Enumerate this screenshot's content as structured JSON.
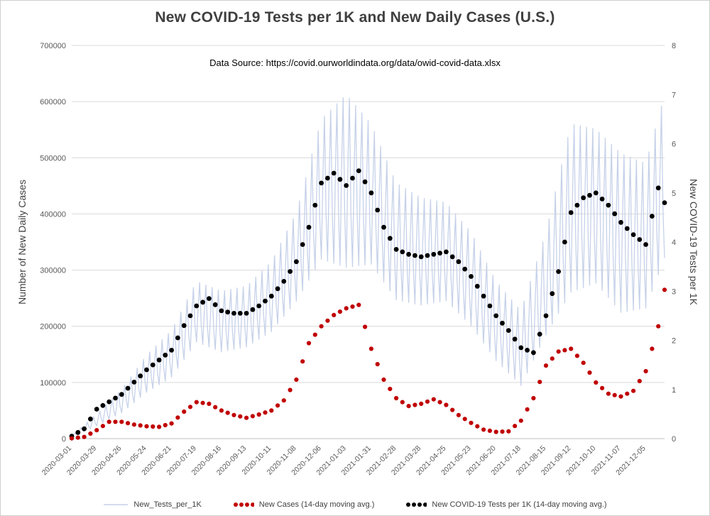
{
  "chart_data": {
    "type": "line",
    "title": "New COVID-19 Tests per 1K and New Daily Cases (U.S.)",
    "subtitle": "Data Source: https://covid.ourworldindata.org/data/owid-covid-data.xlsx",
    "left_axis": {
      "label": "Number of New Daily Cases",
      "min": 0,
      "max": 700000,
      "step": 100000
    },
    "right_axis": {
      "label": "New COVID-19 Tests per 1K",
      "min": 0,
      "max": 8,
      "step": 1
    },
    "x_axis": {
      "tick_interval_days": 28,
      "total_days": 665,
      "tick_labels": [
        "2020-03-01",
        "2020-03-29",
        "2020-04-26",
        "2020-05-24",
        "2020-06-21",
        "2020-07-19",
        "2020-08-16",
        "2020-09-13",
        "2020-10-11",
        "2020-11-08",
        "2020-12-06",
        "2021-01-03",
        "2021-01-31",
        "2021-02-28",
        "2021-03-28",
        "2021-04-25",
        "2021-05-23",
        "2021-06-20",
        "2021-07-18",
        "2021-08-15",
        "2021-09-12",
        "2021-10-10",
        "2021-11-07",
        "2021-12-05"
      ]
    },
    "grid": "horizontal",
    "legend_position": "bottom",
    "colors": {
      "grid": "#d9d9d9",
      "axis_line": "#bfbfbf",
      "tick_text": "#595959"
    },
    "series": [
      {
        "name": "New_Tests_per_1K",
        "axis": "right",
        "style": "jagged-daily-line",
        "color": "#c6d1e9",
        "weekly_period_days": 7,
        "envelope_days": [
          0,
          28,
          56,
          84,
          112,
          140,
          168,
          196,
          224,
          252,
          280,
          308,
          336,
          364,
          392,
          420,
          448,
          476,
          504,
          532,
          560,
          588,
          616,
          644,
          665
        ],
        "envelope_low": [
          0.02,
          0.25,
          0.5,
          0.9,
          1.2,
          1.9,
          1.7,
          1.8,
          2.1,
          2.7,
          3.5,
          3.3,
          3.4,
          2.7,
          2.6,
          2.7,
          2.2,
          1.5,
          1.0,
          2.0,
          2.8,
          3.0,
          2.4,
          2.5,
          3.5
        ],
        "envelope_high": [
          0.06,
          0.5,
          1.0,
          1.7,
          2.2,
          3.2,
          3.0,
          3.1,
          3.6,
          4.6,
          6.5,
          7.0,
          6.4,
          5.2,
          4.9,
          4.8,
          4.2,
          3.2,
          2.6,
          4.2,
          6.4,
          6.3,
          5.8,
          5.6,
          7.0
        ]
      },
      {
        "name": "New Cases (14-day moving avg.)",
        "axis": "left",
        "style": "dots",
        "color": "#c00000",
        "days": [
          0,
          14,
          28,
          42,
          56,
          70,
          84,
          98,
          112,
          126,
          140,
          154,
          168,
          182,
          196,
          210,
          224,
          238,
          252,
          266,
          280,
          294,
          308,
          322,
          336,
          350,
          364,
          378,
          392,
          406,
          420,
          434,
          448,
          462,
          476,
          490,
          504,
          518,
          532,
          546,
          560,
          574,
          588,
          602,
          616,
          630,
          644,
          658,
          664
        ],
        "values": [
          500,
          3000,
          15000,
          30000,
          30000,
          25000,
          22000,
          21000,
          27000,
          48000,
          65000,
          62000,
          50000,
          42000,
          37000,
          43000,
          50000,
          68000,
          105000,
          170000,
          200000,
          220000,
          232000,
          238000,
          160000,
          105000,
          72000,
          58000,
          62000,
          70000,
          60000,
          42000,
          28000,
          16000,
          12000,
          13000,
          32000,
          72000,
          130000,
          155000,
          160000,
          135000,
          100000,
          80000,
          75000,
          85000,
          120000,
          200000,
          265000
        ]
      },
      {
        "name": "New COVID-19 Tests per 1K (14-day moving avg.)",
        "axis": "right",
        "style": "dots",
        "color": "#000000",
        "days": [
          0,
          14,
          28,
          42,
          56,
          70,
          84,
          98,
          112,
          126,
          140,
          154,
          168,
          182,
          196,
          210,
          224,
          238,
          252,
          266,
          280,
          294,
          308,
          322,
          336,
          350,
          364,
          378,
          392,
          406,
          420,
          434,
          448,
          462,
          476,
          490,
          504,
          518,
          532,
          546,
          560,
          574,
          588,
          602,
          616,
          630,
          644,
          658,
          664
        ],
        "values": [
          0.05,
          0.2,
          0.6,
          0.75,
          0.9,
          1.15,
          1.4,
          1.6,
          1.8,
          2.3,
          2.7,
          2.85,
          2.6,
          2.55,
          2.55,
          2.7,
          2.9,
          3.2,
          3.6,
          4.3,
          5.2,
          5.4,
          5.15,
          5.45,
          5.0,
          4.3,
          3.85,
          3.75,
          3.7,
          3.75,
          3.8,
          3.6,
          3.3,
          2.9,
          2.5,
          2.2,
          1.85,
          1.75,
          2.5,
          3.4,
          4.6,
          4.9,
          5.0,
          4.75,
          4.4,
          4.15,
          3.95,
          5.1,
          4.8
        ]
      }
    ]
  }
}
